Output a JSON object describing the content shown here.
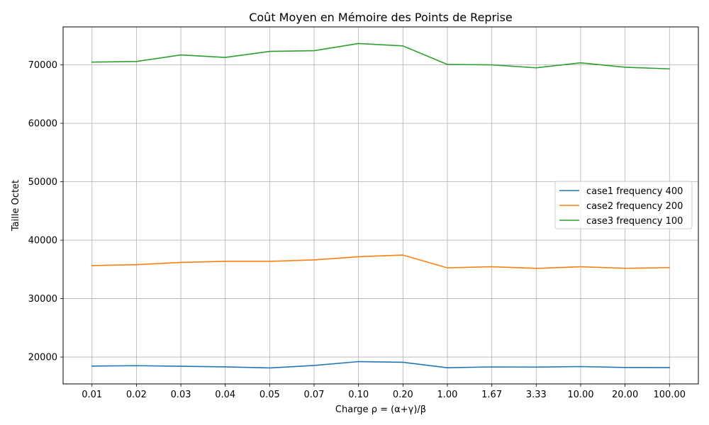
{
  "chart_data": {
    "type": "line",
    "title": "Coût Moyen en Mémoire des Points de Reprise",
    "xlabel": "Charge ρ = (α+γ)/β",
    "ylabel": "Taille Octet",
    "categories": [
      "0.01",
      "0.02",
      "0.03",
      "0.04",
      "0.05",
      "0.07",
      "0.10",
      "0.20",
      "1.00",
      "1.67",
      "3.33",
      "10.00",
      "20.00",
      "100.00"
    ],
    "yticks": [
      20000,
      30000,
      40000,
      50000,
      60000,
      70000
    ],
    "ylim": [
      15400,
      76500
    ],
    "grid": true,
    "legend_position": "center-right",
    "series": [
      {
        "name": "case1 frequency 400",
        "color": "#1f77b4",
        "values": [
          18450,
          18520,
          18420,
          18320,
          18130,
          18560,
          19220,
          19100,
          18170,
          18310,
          18280,
          18370,
          18210,
          18200
        ]
      },
      {
        "name": "case2 frequency 200",
        "color": "#ff7f0e",
        "values": [
          35650,
          35800,
          36200,
          36380,
          36380,
          36620,
          37170,
          37450,
          35270,
          35460,
          35180,
          35450,
          35190,
          35310
        ]
      },
      {
        "name": "case3 frequency 100",
        "color": "#2ca02c",
        "values": [
          70480,
          70580,
          71700,
          71280,
          72310,
          72430,
          73660,
          73250,
          70080,
          70010,
          69500,
          70350,
          69600,
          69320
        ]
      }
    ]
  }
}
